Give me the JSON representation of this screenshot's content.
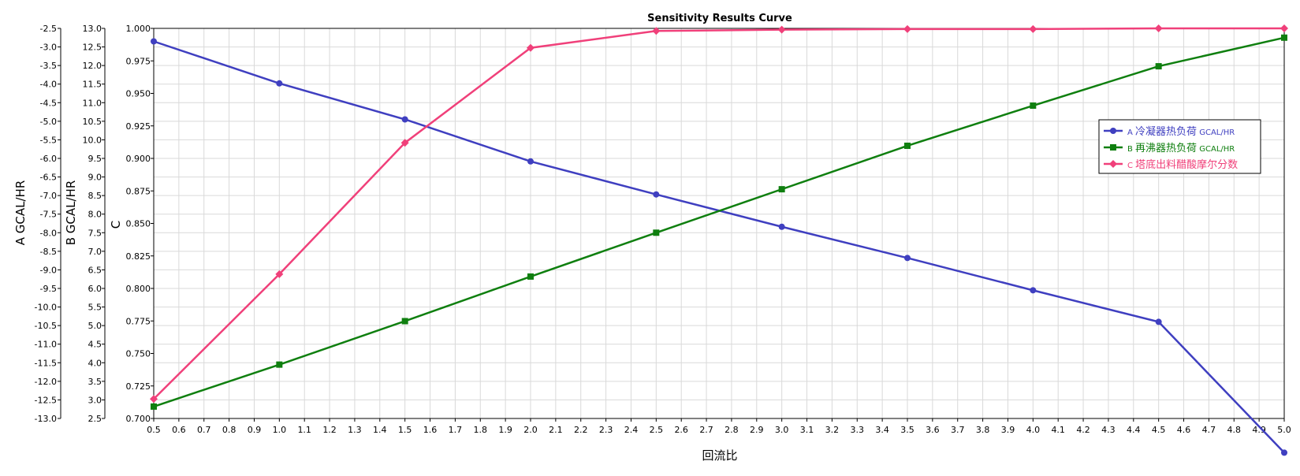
{
  "chart_data": {
    "type": "line",
    "title": "Sensitivity Results Curve",
    "xlabel": "回流比",
    "x": [
      0.5,
      1.0,
      1.5,
      2.0,
      2.5,
      3.0,
      3.5,
      4.0,
      4.5,
      5.0
    ],
    "xlim": [
      0.5,
      5.0
    ],
    "x_ticks": [
      "0.5",
      "0.6",
      "0.7",
      "0.8",
      "0.9",
      "1.0",
      "1.1",
      "1.2",
      "1.3",
      "1.4",
      "1.5",
      "1.6",
      "1.7",
      "1.8",
      "1.9",
      "2.0",
      "2.1",
      "2.2",
      "2.3",
      "2.4",
      "2.5",
      "2.6",
      "2.7",
      "2.8",
      "2.9",
      "3.0",
      "3.1",
      "3.2",
      "3.3",
      "3.4",
      "3.5",
      "3.6",
      "3.7",
      "3.8",
      "3.9",
      "4.0",
      "4.1",
      "4.2",
      "4.3",
      "4.4",
      "4.5",
      "4.6",
      "4.7",
      "4.8",
      "4.9",
      "5.0"
    ],
    "grid": true,
    "legend_position": "right",
    "axes": [
      {
        "id": "A",
        "label": "A GCAL/HR",
        "ylim": [
          -13.0,
          -2.5
        ],
        "ticks": [
          "-2.5",
          "-3.0",
          "-3.5",
          "-4.0",
          "-4.5",
          "-5.0",
          "-5.5",
          "-6.0",
          "-6.5",
          "-7.0",
          "-7.5",
          "-8.0",
          "-8.5",
          "-9.0",
          "-9.5",
          "-10.0",
          "-10.5",
          "-11.0",
          "-11.5",
          "-12.0",
          "-12.5",
          "-13.0"
        ]
      },
      {
        "id": "B",
        "label": "B GCAL/HR",
        "ylim": [
          2.5,
          13.0
        ],
        "ticks": [
          "13.0",
          "12.5",
          "12.0",
          "11.5",
          "11.0",
          "10.5",
          "10.0",
          "9.5",
          "9.0",
          "8.5",
          "8.0",
          "7.5",
          "7.0",
          "6.5",
          "6.0",
          "5.5",
          "5.0",
          "4.5",
          "4.0",
          "3.5",
          "3.0",
          "2.5"
        ]
      },
      {
        "id": "C",
        "label": "C",
        "ylim": [
          0.7,
          1.0
        ],
        "ticks": [
          "1.000",
          "0.975",
          "0.950",
          "0.925",
          "0.900",
          "0.875",
          "0.850",
          "0.825",
          "0.800",
          "0.775",
          "0.750",
          "0.725",
          "0.700"
        ]
      }
    ],
    "series": [
      {
        "key": "A",
        "name_prefix": "A",
        "name": "冷凝器热负荷",
        "unit": "GCAL/HR",
        "axis": "A",
        "color": "#3f3fc0",
        "marker": "circle",
        "values": [
          -2.85,
          -3.98,
          -4.95,
          -6.08,
          -6.97,
          -7.84,
          -8.68,
          -9.55,
          -10.4,
          -13.92
        ]
      },
      {
        "key": "B",
        "name_prefix": "B",
        "name": "再沸器热负荷",
        "unit": "GCAL/HR",
        "axis": "B",
        "color": "#0f7f0f",
        "marker": "square",
        "values": [
          2.82,
          3.95,
          5.12,
          6.32,
          7.5,
          8.67,
          9.84,
          10.92,
          11.98,
          12.75
        ]
      },
      {
        "key": "C",
        "name_prefix": "C",
        "name": "塔底出料醋酸摩尔分数",
        "unit": "",
        "axis": "C",
        "color": "#f0407a",
        "marker": "diamond",
        "values": [
          0.715,
          0.811,
          0.912,
          0.985,
          0.998,
          0.999,
          0.9995,
          0.9995,
          1.0,
          1.0
        ]
      }
    ]
  }
}
